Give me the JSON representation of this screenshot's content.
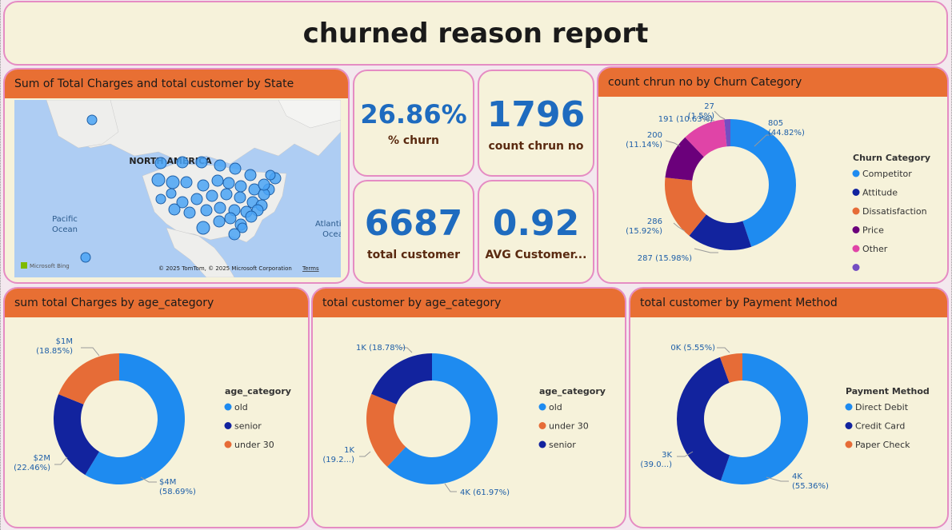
{
  "title": "churned reason report",
  "map_card": {
    "title": "Sum of Total Charges and total customer by State",
    "continent_label": "NORTH AMERICA",
    "ocean_left": "Pacific Ocean",
    "ocean_right": "Atlantic Ocean",
    "bing_label": "Microsoft Bing",
    "copyright": "© 2025 TomTom, © 2025 Microsoft Corporation",
    "terms": "Terms"
  },
  "kpis": {
    "churn_pct": {
      "value": "26.86%",
      "label": "% churn"
    },
    "count_churn": {
      "value": "1796",
      "label": "count chrun no"
    },
    "total_customer": {
      "value": "6687",
      "label": "total customer"
    },
    "avg_customer": {
      "value": "0.92",
      "label": "AVG Customer..."
    }
  },
  "colors": {
    "blue": "#1e8bf0",
    "navy": "#12239e",
    "orange": "#e66c37",
    "purple": "#6b007b",
    "pink": "#e044a7",
    "violet": "#744ec2",
    "header": "#e86f33",
    "card_bg": "#f6f2da",
    "border": "#e58cc3"
  },
  "chart_data": [
    {
      "id": "churn_category",
      "type": "pie",
      "title": "count chrun no by Churn Category",
      "legend_title": "Churn Category",
      "categories": [
        "Competitor",
        "Attitude",
        "Dissatisfaction",
        "Price",
        "Other",
        ""
      ],
      "values": [
        805,
        287,
        286,
        200,
        191,
        27
      ],
      "labels": [
        [
          "805",
          "(44.82%)"
        ],
        [
          "287 (15.98%)"
        ],
        [
          "286",
          "(15.92%)"
        ],
        [
          "200",
          "(11.14%)"
        ],
        [
          "191 (10.63%)"
        ],
        [
          "27",
          "(1.5%)"
        ]
      ],
      "colors": [
        "#1e8bf0",
        "#12239e",
        "#e66c37",
        "#6b007b",
        "#e044a7",
        "#744ec2"
      ]
    },
    {
      "id": "charges_age",
      "type": "pie",
      "title": "sum total Charges by age_category",
      "legend_title": "age_category",
      "categories": [
        "old",
        "senior",
        "under 30"
      ],
      "values": [
        58.69,
        22.46,
        18.85
      ],
      "labels": [
        [
          "$4M",
          "(58.69%)"
        ],
        [
          "$2M",
          "(22.46%)"
        ],
        [
          "$1M",
          "(18.85%)"
        ]
      ],
      "colors": [
        "#1e8bf0",
        "#12239e",
        "#e66c37"
      ]
    },
    {
      "id": "customer_age",
      "type": "pie",
      "title": "total customer by age_category",
      "legend_title": "age_category",
      "categories": [
        "old",
        "under 30",
        "senior"
      ],
      "values": [
        61.97,
        19.25,
        18.78
      ],
      "labels": [
        [
          "4K (61.97%)"
        ],
        [
          "1K",
          "(19.2...)"
        ],
        [
          "1K (18.78%)"
        ]
      ],
      "colors": [
        "#1e8bf0",
        "#e66c37",
        "#12239e"
      ]
    },
    {
      "id": "customer_payment",
      "type": "pie",
      "title": "total customer by Payment Method",
      "legend_title": "Payment Method",
      "categories": [
        "Direct Debit",
        "Credit Card",
        "Paper Check"
      ],
      "values": [
        55.36,
        39.09,
        5.55
      ],
      "labels": [
        [
          "4K",
          "(55.36%)"
        ],
        [
          "3K",
          "(39.0...)"
        ],
        [
          "0K (5.55%)"
        ]
      ],
      "colors": [
        "#1e8bf0",
        "#12239e",
        "#e66c37"
      ]
    }
  ]
}
